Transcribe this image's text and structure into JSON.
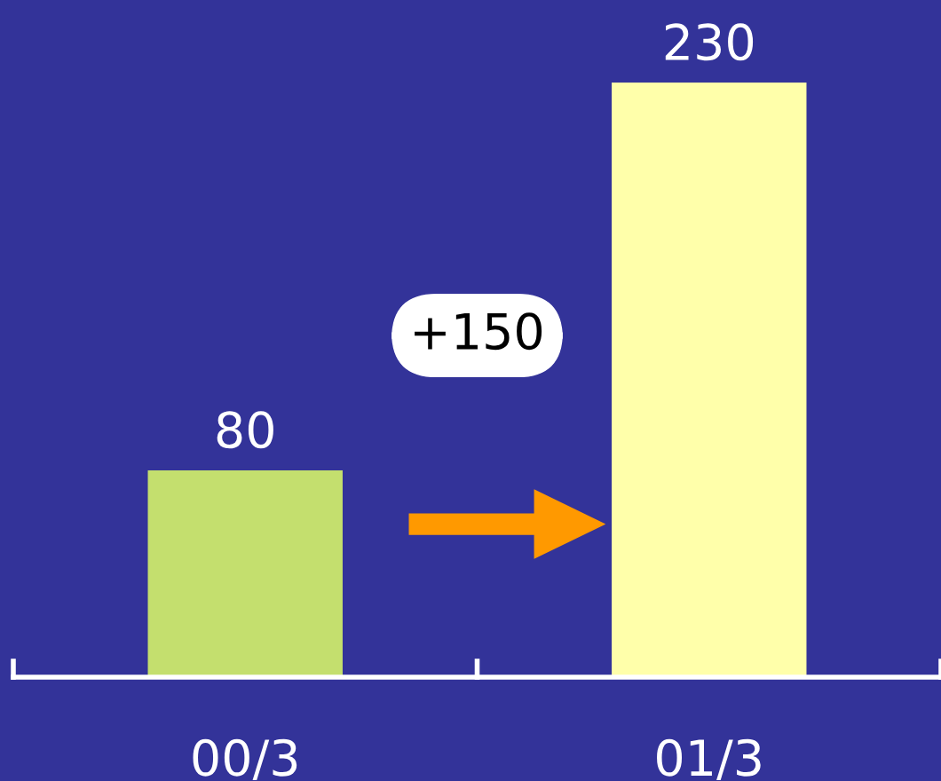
{
  "chart_data": {
    "type": "bar",
    "categories": [
      "00/3",
      "01/3"
    ],
    "values": [
      80,
      230
    ],
    "colors": [
      "#c4df6e",
      "#ffffaa"
    ],
    "data_labels": true,
    "annotations": [
      "+150"
    ]
  }
}
